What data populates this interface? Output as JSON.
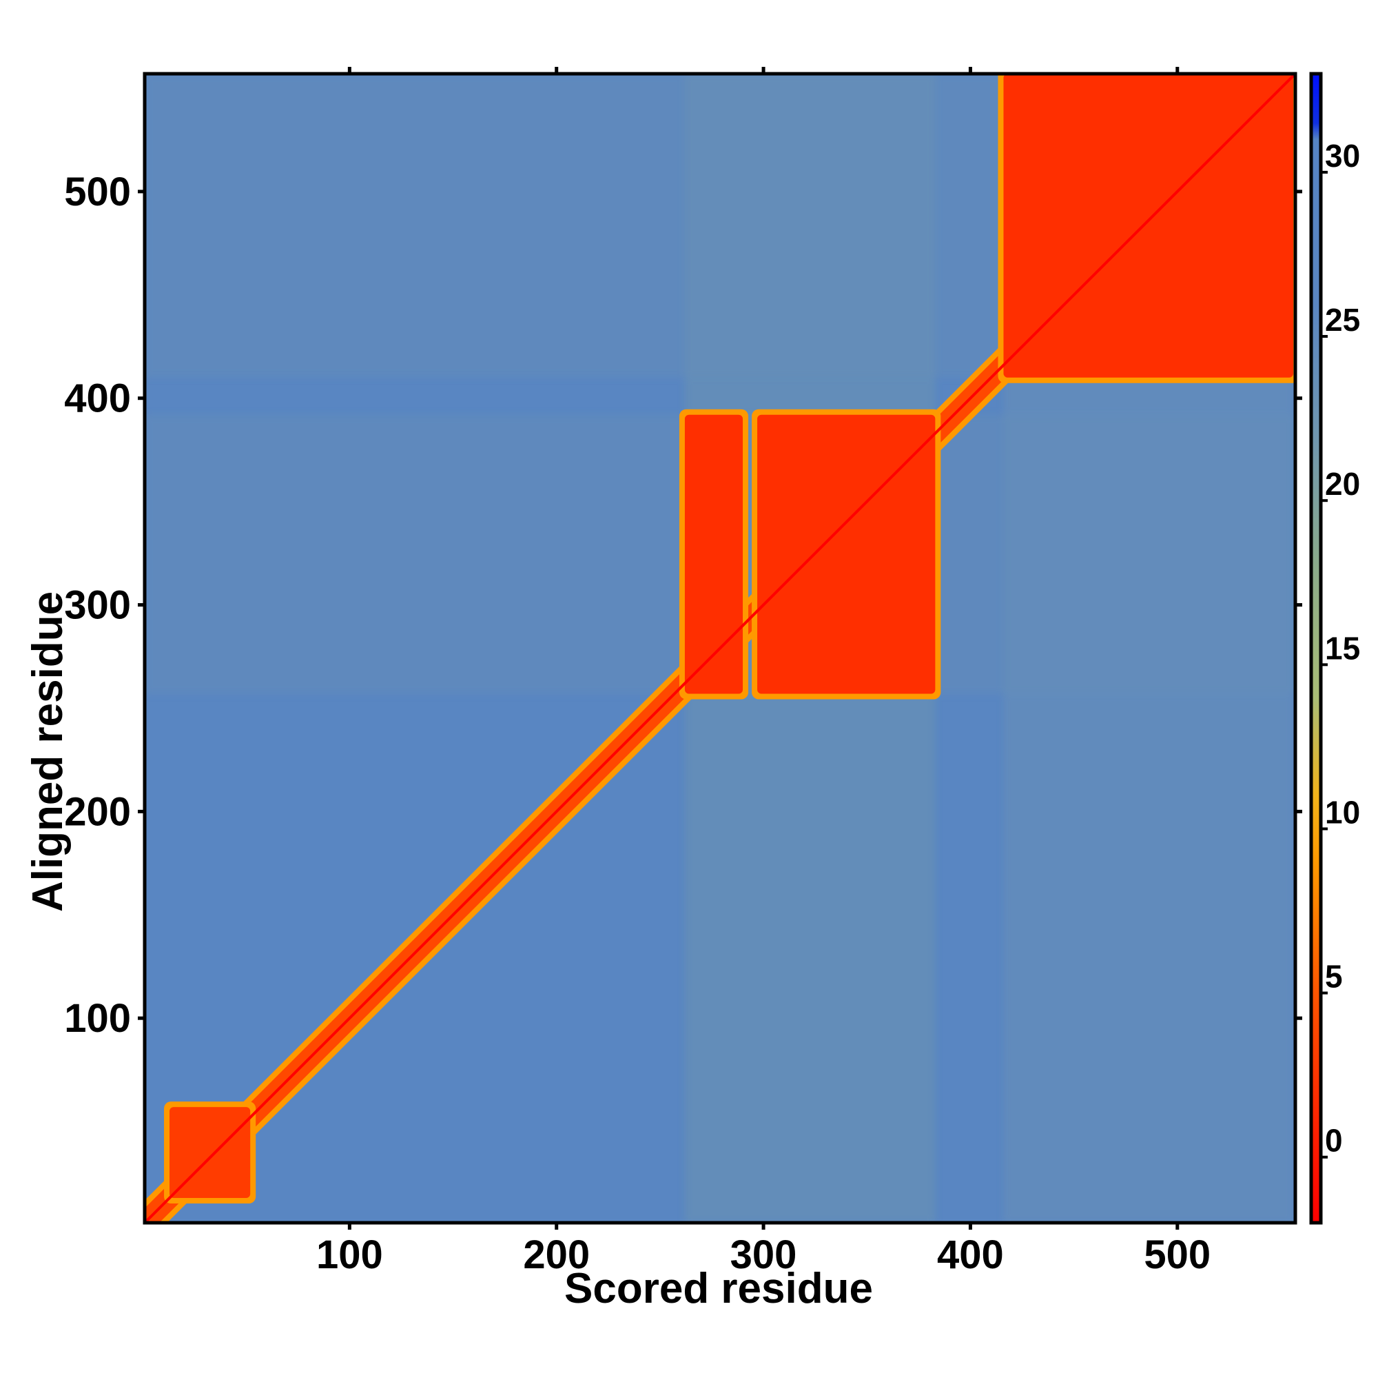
{
  "chart_data": {
    "type": "heatmap",
    "title": "",
    "xlabel": "Scored residue",
    "ylabel": "Aligned residue",
    "xlim": [
      1,
      557
    ],
    "ylim": [
      1,
      557
    ],
    "x_ticks": [
      100,
      200,
      300,
      400,
      500
    ],
    "y_ticks": [
      100,
      200,
      300,
      400,
      500
    ],
    "colorbar": {
      "range": [
        -2,
        33
      ],
      "ticks": [
        0,
        5,
        10,
        15,
        20,
        25,
        30
      ],
      "stops": [
        {
          "value": -2,
          "color": "#ff0000"
        },
        {
          "value": 1,
          "color": "#ff2200"
        },
        {
          "value": 5,
          "color": "#ff5500"
        },
        {
          "value": 9,
          "color": "#ff9900"
        },
        {
          "value": 11,
          "color": "#f2b31a"
        },
        {
          "value": 14,
          "color": "#a9bd76"
        },
        {
          "value": 18,
          "color": "#8bab8a"
        },
        {
          "value": 22,
          "color": "#6f96b0"
        },
        {
          "value": 26,
          "color": "#5a86c2"
        },
        {
          "value": 31,
          "color": "#5584c4"
        },
        {
          "value": 31.5,
          "color": "#1030e0"
        },
        {
          "value": 33,
          "color": "#0010ff"
        }
      ]
    },
    "regions": {
      "background_value": 27,
      "diagonal_value": 1,
      "blocks": [
        {
          "x": [
            13,
            52
          ],
          "y": [
            13,
            57
          ],
          "value": 3
        },
        {
          "x": [
            262,
            290
          ],
          "y": [
            257,
            392
          ],
          "value": 2
        },
        {
          "x": [
            297,
            383
          ],
          "y": [
            257,
            392
          ],
          "value": 2
        },
        {
          "x": [
            416,
            556
          ],
          "y": [
            410,
            557
          ],
          "value": 2
        }
      ],
      "bands": [
        {
          "axis": "x",
          "range": [
            262,
            383
          ],
          "value": 22
        },
        {
          "axis": "x",
          "range": [
            416,
            556
          ],
          "value": 23
        },
        {
          "axis": "y",
          "range": [
            257,
            392
          ],
          "value": 24
        },
        {
          "axis": "y",
          "range": [
            410,
            557
          ],
          "value": 24
        }
      ]
    }
  }
}
